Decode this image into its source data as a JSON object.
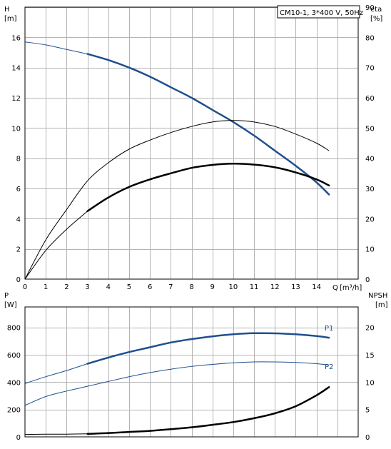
{
  "product_label": "CM10-1, 3*400 V, 50Hz",
  "colors": {
    "blue": "#1f4f8f",
    "black": "#000000",
    "grid": "#b4b4b4"
  },
  "chart_data": [
    {
      "type": "line",
      "left_axis": {
        "name": "H",
        "unit": "[m]",
        "ticks": [
          0,
          2,
          4,
          6,
          8,
          10,
          12,
          14,
          16
        ],
        "range": [
          0,
          18
        ]
      },
      "right_axis": {
        "name": "eta",
        "unit": "[%]",
        "ticks": [
          0,
          10,
          20,
          30,
          40,
          50,
          60,
          70,
          80,
          90
        ],
        "range": [
          0,
          90
        ]
      },
      "x_axis": {
        "name": "Q",
        "unit": "[m³/h]",
        "ticks": [
          0,
          1,
          2,
          3,
          4,
          5,
          6,
          7,
          8,
          9,
          10,
          11,
          12,
          13,
          14
        ],
        "range": [
          0,
          16
        ]
      },
      "series": [
        {
          "key": "H",
          "axis": "left",
          "color": "#1f4f8f",
          "x": [
            0,
            1,
            2,
            3,
            4,
            5,
            6,
            7,
            8,
            9,
            10,
            11,
            12,
            13,
            14,
            14.6
          ],
          "y": [
            15.7,
            15.5,
            15.2,
            14.9,
            14.5,
            14.0,
            13.4,
            12.7,
            12.0,
            11.2,
            10.4,
            9.5,
            8.5,
            7.5,
            6.4,
            5.6
          ],
          "bold_from": 3
        },
        {
          "key": "eta1",
          "axis": "right",
          "color": "#000000",
          "x": [
            0,
            1,
            2,
            3,
            4,
            5,
            6,
            7,
            8,
            9,
            10,
            11,
            12,
            13,
            14,
            14.6
          ],
          "y": [
            0,
            13,
            23,
            32.5,
            38.5,
            43,
            46,
            48.5,
            50.5,
            52,
            52.5,
            52,
            50.5,
            48,
            45,
            42.5
          ],
          "bold_from": 99
        },
        {
          "key": "eta2",
          "axis": "right",
          "color": "#000000",
          "x": [
            0,
            1,
            2,
            3,
            4,
            5,
            6,
            7,
            8,
            9,
            10,
            11,
            12,
            13,
            14,
            14.6
          ],
          "y": [
            0,
            9.5,
            16.5,
            22.5,
            27,
            30.5,
            33,
            35,
            36.8,
            37.8,
            38.2,
            37.9,
            37,
            35.3,
            33,
            31
          ],
          "bold_from": 3
        }
      ]
    },
    {
      "type": "line",
      "left_axis": {
        "name": "P",
        "unit": "[W]",
        "ticks": [
          0,
          200,
          400,
          600,
          800
        ],
        "range": [
          0,
          950
        ]
      },
      "right_axis": {
        "name": "NPSH",
        "unit": "[m]",
        "ticks": [
          0,
          5,
          10,
          15,
          20
        ],
        "range": [
          0,
          23.75
        ]
      },
      "x_axis": {
        "range": [
          0,
          16
        ]
      },
      "series": [
        {
          "key": "P1",
          "label": "P1",
          "axis": "left",
          "color": "#1f4f8f",
          "x": [
            0,
            1,
            2,
            3,
            4,
            5,
            6,
            7,
            8,
            9,
            10,
            11,
            12,
            13,
            14,
            14.6
          ],
          "y": [
            390,
            440,
            485,
            535,
            580,
            620,
            655,
            690,
            715,
            735,
            750,
            758,
            757,
            750,
            737,
            725
          ],
          "bold_from": 3
        },
        {
          "key": "P2",
          "label": "P2",
          "axis": "left",
          "color": "#1f4f8f",
          "x": [
            0,
            1,
            2,
            3,
            4,
            5,
            6,
            7,
            8,
            9,
            10,
            11,
            12,
            13,
            14,
            14.6
          ],
          "y": [
            230,
            295,
            335,
            370,
            405,
            440,
            470,
            495,
            515,
            530,
            542,
            548,
            548,
            544,
            535,
            525
          ],
          "bold_from": 99
        },
        {
          "key": "NPSH",
          "axis": "right",
          "color": "#000000",
          "x": [
            0,
            1,
            2,
            3,
            4,
            5,
            6,
            7,
            8,
            9,
            10,
            11,
            12,
            13,
            14,
            14.6
          ],
          "y": [
            0.45,
            0.48,
            0.5,
            0.55,
            0.7,
            0.9,
            1.1,
            1.4,
            1.75,
            2.2,
            2.7,
            3.4,
            4.3,
            5.6,
            7.6,
            9.1
          ],
          "bold_from": 3
        }
      ]
    }
  ]
}
